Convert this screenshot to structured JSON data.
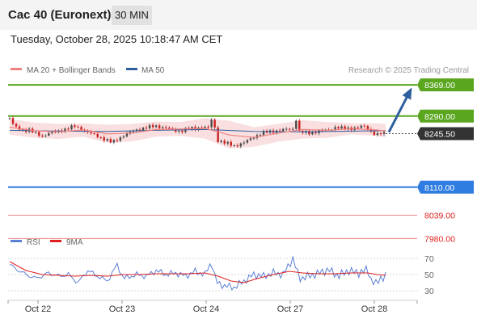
{
  "header": {
    "title": "Cac 40 (Euronext)",
    "timeframe": "30 MIN",
    "datetime": "Tuesday, October 28, 2025 10:18:47 AM CET"
  },
  "legend": {
    "ma20": "MA 20 + Bollinger Bands",
    "ma50": "MA 50",
    "credit": "Research © 2025 Trading Central",
    "rsi": "RSI",
    "rsi_ma": "9MA"
  },
  "colors": {
    "green_level": "#5aa61e",
    "blue_level": "#2f7de1",
    "red_level": "#e02020",
    "ma20": "#f08080",
    "ma50": "#2f5f9e",
    "bollinger": "#f8dcdc",
    "candle_up": "#4a4a4a",
    "candle_down": "#cc1f1f",
    "arrow": "#2f5f9e",
    "current_label": "#333333"
  },
  "chart_data": {
    "type": "candlestick",
    "instrument": "Cac 40 (Euronext)",
    "interval": "30 MIN",
    "ylim": [
      7950,
      8400
    ],
    "levels": [
      {
        "label": "8369.00",
        "value": 8369,
        "kind": "resistance",
        "color": "#5aa61e",
        "target": true
      },
      {
        "label": "8290.00",
        "value": 8290,
        "kind": "resistance",
        "color": "#5aa61e"
      },
      {
        "label": "8245.50",
        "value": 8245.5,
        "kind": "current",
        "color": "#333333"
      },
      {
        "label": "8110.00",
        "value": 8110,
        "kind": "pivot",
        "color": "#2f7de1"
      },
      {
        "label": "8039.00",
        "value": 8039,
        "kind": "support",
        "color": "#e02020"
      },
      {
        "label": "7980.00",
        "value": 7980,
        "kind": "support",
        "color": "#e02020"
      }
    ],
    "x_ticks": [
      "Oct 22",
      "Oct 23",
      "Oct 24",
      "Oct 27",
      "Oct 28"
    ],
    "price_path": [
      [
        0,
        8285
      ],
      [
        3,
        8262
      ],
      [
        8,
        8255
      ],
      [
        12,
        8255
      ],
      [
        15,
        8247
      ],
      [
        20,
        8240
      ],
      [
        25,
        8248
      ],
      [
        30,
        8252
      ],
      [
        35,
        8258
      ],
      [
        40,
        8264
      ],
      [
        45,
        8256
      ],
      [
        50,
        8245
      ],
      [
        55,
        8238
      ],
      [
        60,
        8228
      ],
      [
        63,
        8222
      ],
      [
        67,
        8234
      ],
      [
        72,
        8245
      ],
      [
        78,
        8255
      ],
      [
        85,
        8262
      ],
      [
        90,
        8265
      ],
      [
        96,
        8260
      ],
      [
        100,
        8255
      ],
      [
        105,
        8252
      ],
      [
        110,
        8258
      ],
      [
        118,
        8262
      ],
      [
        122,
        8260
      ],
      [
        125,
        8292
      ],
      [
        127,
        8230
      ],
      [
        132,
        8222
      ],
      [
        138,
        8215
      ],
      [
        144,
        8222
      ],
      [
        150,
        8238
      ],
      [
        156,
        8248
      ],
      [
        162,
        8252
      ],
      [
        168,
        8255
      ],
      [
        174,
        8258
      ],
      [
        176,
        8282
      ],
      [
        178,
        8250
      ],
      [
        184,
        8247
      ],
      [
        190,
        8252
      ],
      [
        196,
        8255
      ],
      [
        200,
        8262
      ],
      [
        206,
        8258
      ],
      [
        212,
        8260
      ],
      [
        218,
        8264
      ],
      [
        222,
        8252
      ],
      [
        225,
        8242
      ],
      [
        228,
        8246
      ],
      [
        231,
        8245.5
      ]
    ],
    "ma20_path": [
      [
        0,
        8262
      ],
      [
        15,
        8253
      ],
      [
        30,
        8250
      ],
      [
        45,
        8255
      ],
      [
        60,
        8245
      ],
      [
        75,
        8247
      ],
      [
        90,
        8256
      ],
      [
        105,
        8257
      ],
      [
        120,
        8259
      ],
      [
        135,
        8242
      ],
      [
        150,
        8236
      ],
      [
        165,
        8247
      ],
      [
        180,
        8256
      ],
      [
        195,
        8254
      ],
      [
        210,
        8258
      ],
      [
        225,
        8255
      ],
      [
        231,
        8252
      ]
    ],
    "ma50_path": [
      [
        0,
        8254
      ],
      [
        30,
        8252
      ],
      [
        60,
        8251
      ],
      [
        90,
        8254
      ],
      [
        120,
        8256
      ],
      [
        150,
        8251
      ],
      [
        180,
        8250
      ],
      [
        210,
        8252
      ],
      [
        231,
        8253
      ]
    ],
    "bollinger_upper": [
      [
        0,
        8282
      ],
      [
        15,
        8274
      ],
      [
        30,
        8270
      ],
      [
        45,
        8272
      ],
      [
        60,
        8268
      ],
      [
        75,
        8270
      ],
      [
        90,
        8276
      ],
      [
        105,
        8275
      ],
      [
        120,
        8285
      ],
      [
        135,
        8278
      ],
      [
        150,
        8262
      ],
      [
        165,
        8270
      ],
      [
        180,
        8280
      ],
      [
        195,
        8275
      ],
      [
        210,
        8272
      ],
      [
        225,
        8272
      ],
      [
        231,
        8270
      ]
    ],
    "bollinger_lower": [
      [
        0,
        8243
      ],
      [
        15,
        8235
      ],
      [
        30,
        8232
      ],
      [
        45,
        8238
      ],
      [
        60,
        8223
      ],
      [
        75,
        8226
      ],
      [
        90,
        8238
      ],
      [
        105,
        8240
      ],
      [
        120,
        8233
      ],
      [
        135,
        8208
      ],
      [
        150,
        8212
      ],
      [
        165,
        8225
      ],
      [
        180,
        8233
      ],
      [
        195,
        8235
      ],
      [
        210,
        8244
      ],
      [
        225,
        8240
      ],
      [
        231,
        8236
      ]
    ],
    "projection": {
      "from": 8245.5,
      "to": 8369
    },
    "rsi": {
      "ylim": [
        20,
        80
      ],
      "ticks": [
        70,
        50,
        30
      ],
      "rsi_path": [
        [
          0,
          62
        ],
        [
          8,
          52
        ],
        [
          16,
          45
        ],
        [
          24,
          52
        ],
        [
          30,
          48
        ],
        [
          36,
          50
        ],
        [
          42,
          40
        ],
        [
          48,
          55
        ],
        [
          54,
          48
        ],
        [
          60,
          42
        ],
        [
          66,
          62
        ],
        [
          70,
          45
        ],
        [
          78,
          50
        ],
        [
          84,
          48
        ],
        [
          90,
          55
        ],
        [
          96,
          50
        ],
        [
          102,
          52
        ],
        [
          108,
          48
        ],
        [
          114,
          54
        ],
        [
          120,
          50
        ],
        [
          124,
          66
        ],
        [
          127,
          40
        ],
        [
          132,
          36
        ],
        [
          138,
          34
        ],
        [
          144,
          42
        ],
        [
          150,
          50
        ],
        [
          156,
          48
        ],
        [
          162,
          52
        ],
        [
          168,
          50
        ],
        [
          174,
          70
        ],
        [
          178,
          45
        ],
        [
          184,
          48
        ],
        [
          190,
          52
        ],
        [
          196,
          56
        ],
        [
          202,
          48
        ],
        [
          208,
          55
        ],
        [
          214,
          52
        ],
        [
          220,
          56
        ],
        [
          222,
          44
        ],
        [
          225,
          38
        ],
        [
          228,
          46
        ],
        [
          231,
          48
        ]
      ],
      "ma_path": [
        [
          0,
          66
        ],
        [
          10,
          55
        ],
        [
          20,
          50
        ],
        [
          30,
          49
        ],
        [
          40,
          48
        ],
        [
          50,
          49
        ],
        [
          60,
          48
        ],
        [
          70,
          50
        ],
        [
          80,
          50
        ],
        [
          90,
          51
        ],
        [
          100,
          51
        ],
        [
          110,
          51
        ],
        [
          120,
          52
        ],
        [
          128,
          48
        ],
        [
          136,
          42
        ],
        [
          144,
          40
        ],
        [
          152,
          45
        ],
        [
          162,
          50
        ],
        [
          172,
          54
        ],
        [
          180,
          52
        ],
        [
          190,
          51
        ],
        [
          200,
          51
        ],
        [
          210,
          52
        ],
        [
          220,
          52
        ],
        [
          226,
          50
        ],
        [
          231,
          49
        ]
      ]
    }
  }
}
